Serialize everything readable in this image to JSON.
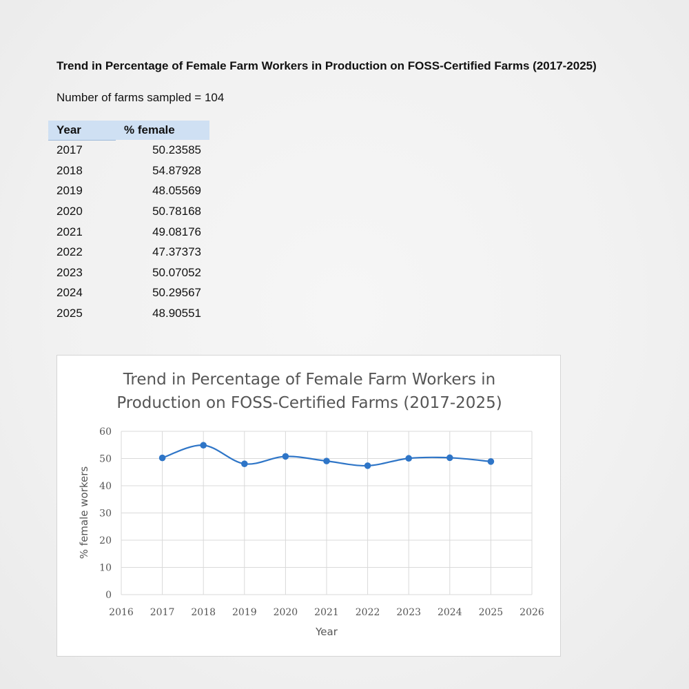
{
  "page": {
    "title": "Trend in Percentage of Female Farm Workers in Production on FOSS-Certified Farms (2017-2025)",
    "sample_note": "Number of farms sampled = 104"
  },
  "table": {
    "headers": [
      "Year",
      "% female"
    ],
    "rows": [
      [
        "2017",
        "50.23585"
      ],
      [
        "2018",
        "54.87928"
      ],
      [
        "2019",
        "48.05569"
      ],
      [
        "2020",
        "50.78168"
      ],
      [
        "2021",
        "49.08176"
      ],
      [
        "2022",
        "47.37373"
      ],
      [
        "2023",
        "50.07052"
      ],
      [
        "2024",
        "50.29567"
      ],
      [
        "2025",
        "48.90551"
      ]
    ]
  },
  "chart_data": {
    "type": "line",
    "title_lines": [
      "Trend in Percentage of Female Farm Workers in",
      "Production on FOSS-Certified Farms (2017-2025)"
    ],
    "xlabel": "Year",
    "ylabel": "% female workers",
    "xlim": [
      2016,
      2026
    ],
    "ylim": [
      0,
      60
    ],
    "xticks": [
      2016,
      2017,
      2018,
      2019,
      2020,
      2021,
      2022,
      2023,
      2024,
      2025,
      2026
    ],
    "yticks": [
      0,
      10,
      20,
      30,
      40,
      50,
      60
    ],
    "grid": true,
    "smooth": true,
    "series": [
      {
        "x": [
          2017,
          2018,
          2019,
          2020,
          2021,
          2022,
          2023,
          2024,
          2025
        ],
        "y": [
          50.23585,
          54.87928,
          48.05569,
          50.78168,
          49.08176,
          47.37373,
          50.07052,
          50.29567,
          48.90551
        ],
        "color": "#2e75c7"
      }
    ]
  }
}
